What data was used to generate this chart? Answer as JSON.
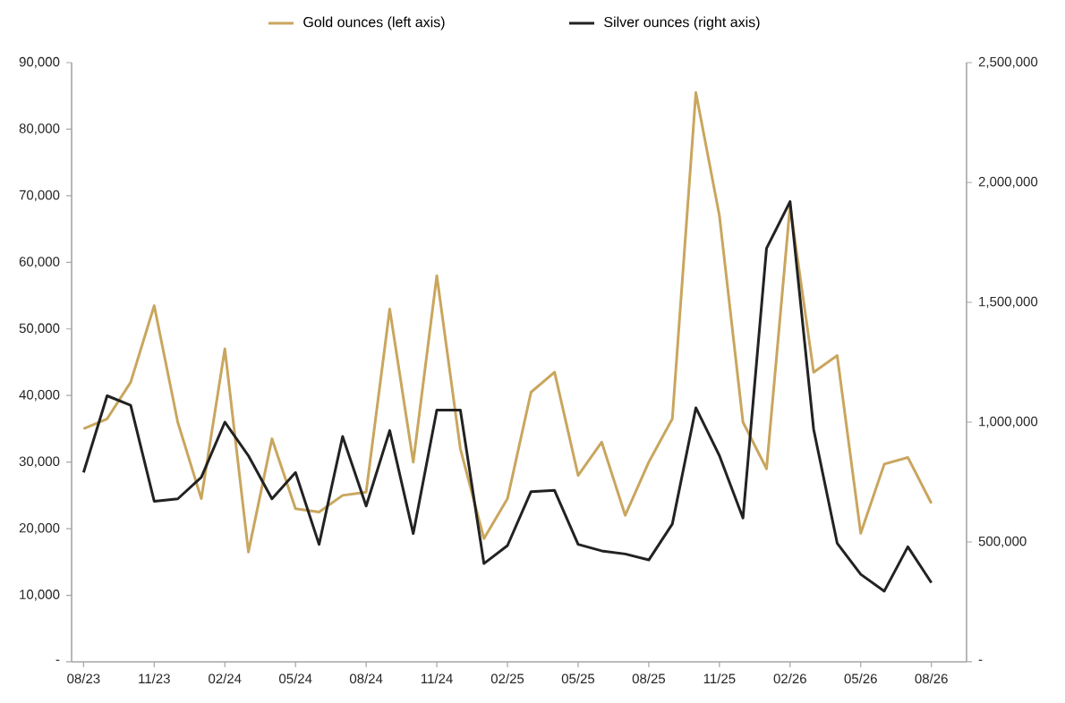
{
  "chart_data": {
    "type": "line",
    "x": [
      "2023-08",
      "2023-09",
      "2023-10",
      "2023-11",
      "2023-12",
      "2024-01",
      "2024-02",
      "2024-03",
      "2024-04",
      "2024-05",
      "2024-06",
      "2024-07",
      "2024-08",
      "2024-09",
      "2024-10",
      "2024-11",
      "2024-12",
      "2025-01",
      "2025-02",
      "2025-03",
      "2025-04",
      "2025-05",
      "2025-06",
      "2025-07",
      "2025-08",
      "2025-09",
      "2025-10",
      "2025-11",
      "2025-12",
      "2026-01",
      "2026-02",
      "2026-03",
      "2026-04",
      "2026-05",
      "2026-06",
      "2026-07",
      "2026-08"
    ],
    "series": [
      {
        "name": "Gold ounces (left axis)",
        "color": "#c9a65e",
        "values": [
          35000,
          36500,
          42000,
          53500,
          36000,
          24500,
          47000,
          16500,
          33500,
          23000,
          22500,
          25000,
          25500,
          53000,
          30000,
          58000,
          32000,
          18500,
          24500,
          40500,
          43500,
          28000,
          33000,
          22000,
          30000,
          36500,
          85500,
          67000,
          36000,
          29000,
          68500,
          43500,
          46000,
          19300,
          29700,
          30700,
          23800
        ]
      },
      {
        "name": "Silver ounces (right axis)",
        "color": "#222222",
        "axis": "y2",
        "values": [
          790000,
          1110000,
          1070000,
          670000,
          680000,
          770000,
          1000000,
          860000,
          680000,
          790000,
          490000,
          940000,
          650000,
          965000,
          535000,
          1050000,
          1050000,
          410000,
          485000,
          710000,
          715000,
          490000,
          463000,
          450000,
          425000,
          575000,
          1060000,
          860000,
          600000,
          1725000,
          1920000,
          970000,
          495000,
          365000,
          295000,
          480000,
          330000
        ]
      }
    ],
    "xlim": [
      "2023-07-16",
      "2026-09-16"
    ],
    "xticks": [
      {
        "value": "2023-08",
        "label": "08/23"
      },
      {
        "value": "2023-11",
        "label": "11/23"
      },
      {
        "value": "2024-02",
        "label": "02/24"
      },
      {
        "value": "2024-05",
        "label": "05/24"
      },
      {
        "value": "2024-08",
        "label": "08/24"
      },
      {
        "value": "2024-11",
        "label": "11/24"
      },
      {
        "value": "2025-02",
        "label": "02/25"
      },
      {
        "value": "2025-05",
        "label": "05/25"
      },
      {
        "value": "2025-08",
        "label": "08/25"
      },
      {
        "value": "2025-11",
        "label": "11/25"
      },
      {
        "value": "2026-02",
        "label": "02/26"
      },
      {
        "value": "2026-05",
        "label": "05/26"
      },
      {
        "value": "2026-08",
        "label": "08/26"
      }
    ],
    "ylim": [
      0,
      90000
    ],
    "yticks": [
      {
        "value": 0,
        "label": "-"
      },
      {
        "value": 10000,
        "label": "10,000"
      },
      {
        "value": 20000,
        "label": "20,000"
      },
      {
        "value": 30000,
        "label": "30,000"
      },
      {
        "value": 40000,
        "label": "40,000"
      },
      {
        "value": 50000,
        "label": "50,000"
      },
      {
        "value": 60000,
        "label": "60,000"
      },
      {
        "value": 70000,
        "label": "70,000"
      },
      {
        "value": 80000,
        "label": "80,000"
      },
      {
        "value": 90000,
        "label": "90,000"
      }
    ],
    "y2lim": [
      0,
      2500000
    ],
    "y2ticks": [
      {
        "value": 0,
        "label": "-"
      },
      {
        "value": 500000,
        "label": "500,000"
      },
      {
        "value": 1000000,
        "label": "1,000,000"
      },
      {
        "value": 1500000,
        "label": "1,500,000"
      },
      {
        "value": 2000000,
        "label": "2,000,000"
      },
      {
        "value": 2500000,
        "label": "2,500,000"
      }
    ],
    "legend": "top",
    "grid": false,
    "marker": "none",
    "line_style": "solid"
  }
}
